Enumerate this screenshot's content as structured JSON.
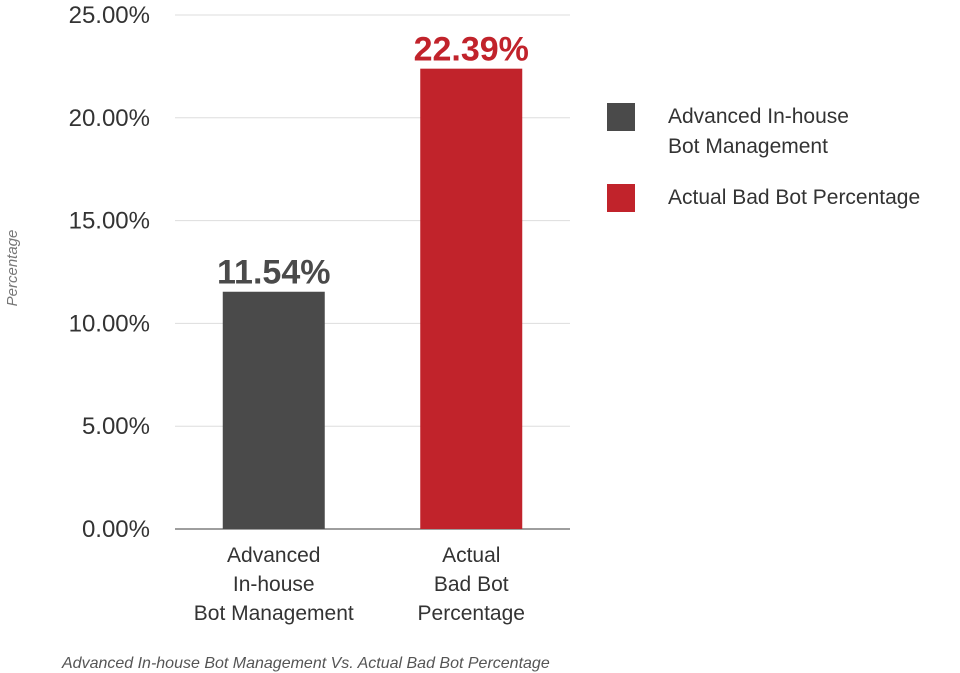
{
  "chart_data": {
    "type": "bar",
    "categories": [
      [
        "Advanced",
        "In-house",
        "Bot Management"
      ],
      [
        "Actual",
        "Bad Bot",
        "Percentage"
      ]
    ],
    "values": [
      11.54,
      22.39
    ],
    "value_labels": [
      "11.54%",
      "22.39%"
    ],
    "colors": [
      "#4a4a4a",
      "#c1232b"
    ],
    "value_label_colors": [
      "#4a4a4a",
      "#c1232b"
    ],
    "ylabel": "Percentage",
    "ylim": [
      0,
      25
    ],
    "yticks": [
      "0.00%",
      "5.00%",
      "10.00%",
      "15.00%",
      "20.00%",
      "25.00%"
    ],
    "grid": true,
    "legend_position": "right",
    "legend": [
      {
        "lines": [
          "Advanced In-house",
          "Bot Management"
        ],
        "color": "#4a4a4a"
      },
      {
        "lines": [
          "Actual Bad Bot Percentage"
        ],
        "color": "#c1232b"
      }
    ],
    "caption": "Advanced In-house Bot Management Vs. Actual Bad Bot Percentage"
  }
}
